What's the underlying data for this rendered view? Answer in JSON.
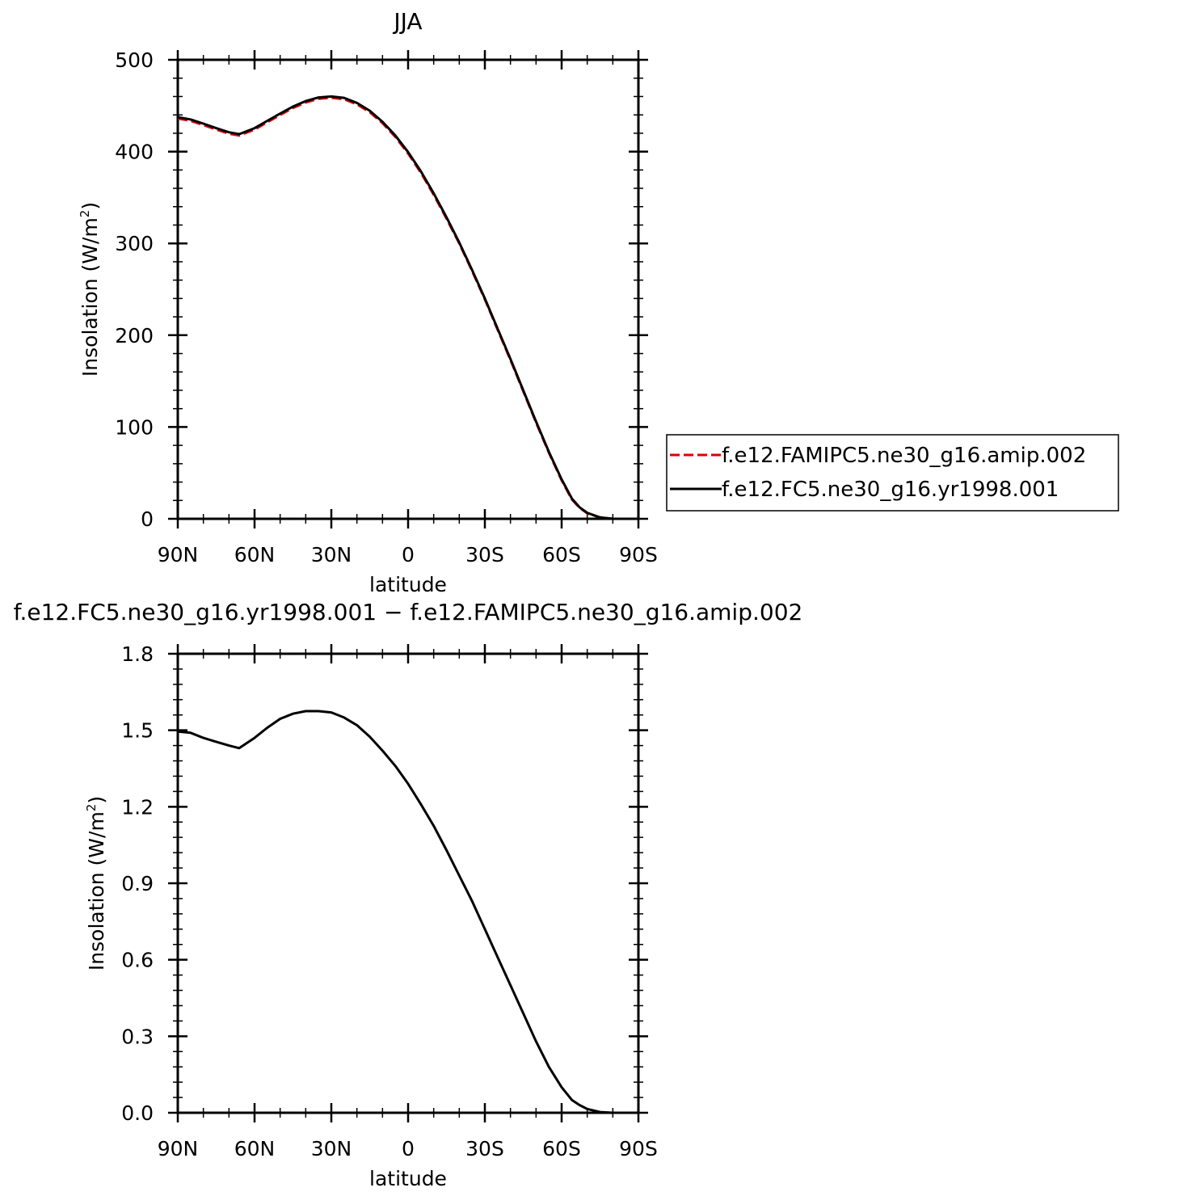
{
  "chart_data": [
    {
      "type": "line",
      "title": "JJA",
      "xlabel": "latitude",
      "ylabel": "Insolation (W/m²)",
      "ylabel_main": "Insolation (W/m",
      "ylabel_sup": "2",
      "ylabel_close": ")",
      "xlim": [
        90,
        -90
      ],
      "ylim": [
        0,
        500
      ],
      "xticks": [
        90,
        60,
        30,
        0,
        -30,
        -60,
        -90
      ],
      "xtick_labels": [
        "90N",
        "60N",
        "30N",
        "0",
        "30S",
        "60S",
        "90S"
      ],
      "yticks": [
        0,
        100,
        200,
        300,
        400,
        500
      ],
      "ytick_labels": [
        "0",
        "100",
        "200",
        "300",
        "400",
        "500"
      ],
      "legend_position": "right",
      "series": [
        {
          "name": "f.e12.FAMIPC5.ne30_g16.amip.002",
          "color": "#e00000",
          "style": "dashed",
          "x": [
            90,
            85,
            80,
            75,
            70,
            66,
            60,
            55,
            50,
            45,
            40,
            35,
            30,
            25,
            20,
            15,
            10,
            5,
            0,
            -5,
            -10,
            -15,
            -20,
            -25,
            -30,
            -35,
            -40,
            -45,
            -50,
            -55,
            -60,
            -64,
            -67,
            -70,
            -75,
            -80,
            -85,
            -90
          ],
          "y": [
            436,
            433.5,
            429,
            424,
            419.5,
            417.5,
            424,
            432,
            440,
            447.5,
            453.5,
            457.5,
            458.5,
            457,
            451.5,
            443,
            431,
            416,
            398,
            377,
            353,
            327,
            300,
            270,
            239,
            206,
            173,
            139,
            105,
            72,
            42,
            21,
            12,
            6,
            1.5,
            0,
            0,
            0
          ]
        },
        {
          "name": "f.e12.FC5.ne30_g16.yr1998.001",
          "color": "#000000",
          "style": "solid",
          "x": [
            90,
            85,
            80,
            75,
            70,
            66,
            60,
            55,
            50,
            45,
            40,
            35,
            30,
            25,
            20,
            15,
            10,
            5,
            0,
            -5,
            -10,
            -15,
            -20,
            -25,
            -30,
            -35,
            -40,
            -45,
            -50,
            -55,
            -60,
            -64,
            -67,
            -70,
            -75,
            -80,
            -85,
            -90
          ],
          "y": [
            437.5,
            435,
            430.5,
            425.5,
            421,
            419,
            425.5,
            433.5,
            441.5,
            449,
            455,
            459,
            460,
            458.5,
            453,
            444.5,
            432.5,
            417.5,
            399.5,
            378.5,
            354.5,
            328.5,
            301,
            271,
            240,
            207,
            174,
            140,
            106,
            73,
            43,
            22,
            12.5,
            6.5,
            1.5,
            0,
            0,
            0
          ]
        }
      ]
    },
    {
      "type": "line",
      "title": "f.e12.FC5.ne30_g16.yr1998.001 − f.e12.FAMIPC5.ne30_g16.amip.002",
      "xlabel": "latitude",
      "ylabel": "Insolation (W/m²)",
      "ylabel_main": "Insolation (W/m",
      "ylabel_sup": "2",
      "ylabel_close": ")",
      "xlim": [
        90,
        -90
      ],
      "ylim": [
        0,
        1.8
      ],
      "xticks": [
        90,
        60,
        30,
        0,
        -30,
        -60,
        -90
      ],
      "xtick_labels": [
        "90N",
        "60N",
        "30N",
        "0",
        "30S",
        "60S",
        "90S"
      ],
      "yticks": [
        0,
        0.3,
        0.6,
        0.9,
        1.2,
        1.5,
        1.8
      ],
      "ytick_labels": [
        "0.0",
        "0.3",
        "0.6",
        "0.9",
        "1.2",
        "1.5",
        "1.8"
      ],
      "series": [
        {
          "color": "#000000",
          "style": "solid",
          "x": [
            90,
            85,
            80,
            75,
            70,
            66,
            60,
            55,
            50,
            45,
            40,
            35,
            30,
            25,
            20,
            15,
            10,
            5,
            0,
            -5,
            -10,
            -15,
            -20,
            -25,
            -30,
            -35,
            -40,
            -45,
            -50,
            -55,
            -60,
            -64,
            -67,
            -70,
            -75,
            -80,
            -85,
            -90
          ],
          "y": [
            1.495,
            1.49,
            1.47,
            1.455,
            1.44,
            1.43,
            1.47,
            1.51,
            1.545,
            1.565,
            1.575,
            1.575,
            1.57,
            1.55,
            1.52,
            1.475,
            1.42,
            1.36,
            1.29,
            1.21,
            1.125,
            1.03,
            0.93,
            0.83,
            0.72,
            0.61,
            0.5,
            0.39,
            0.28,
            0.18,
            0.1,
            0.05,
            0.03,
            0.015,
            0.003,
            0,
            0,
            0
          ]
        }
      ]
    }
  ]
}
